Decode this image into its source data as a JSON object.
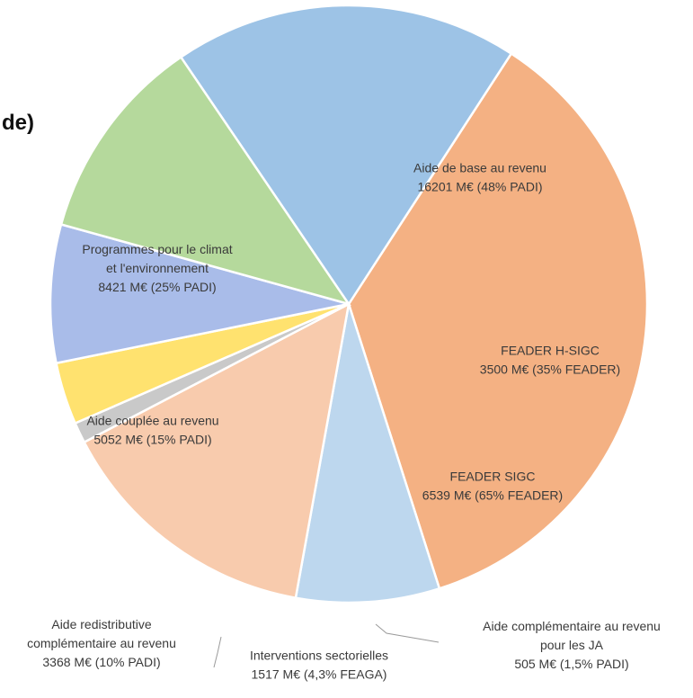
{
  "title_fragment": "de)",
  "chart_data": {
    "type": "pie",
    "unit": "M€",
    "slices": [
      {
        "label": [
          "Aide de base au revenu",
          "16201 M€ (48% PADI)"
        ],
        "value": 16201,
        "color": "#F4B183"
      },
      {
        "label": [
          "FEADER H-SIGC",
          "3500 M€ (35% FEADER)"
        ],
        "value": 3500,
        "color": "#BDD7EE"
      },
      {
        "label": [
          "FEADER SIGC",
          "6539 M€ (65% FEADER)"
        ],
        "value": 6539,
        "color": "#F8CBAD"
      },
      {
        "label": [
          "Aide complémentaire au revenu",
          "pour les JA",
          "505 M€ (1,5% PADI)"
        ],
        "value": 505,
        "color": "#C9C9C9"
      },
      {
        "label": [
          "Interventions sectorielles",
          "1517 M€ (4,3% FEAGA)"
        ],
        "value": 1517,
        "color": "#FFE26F"
      },
      {
        "label": [
          "Aide redistributive",
          "complémentaire au revenu",
          "3368 M€ (10% PADI)"
        ],
        "value": 3368,
        "color": "#A9BCE9"
      },
      {
        "label": [
          "Aide couplée au revenu",
          "5052 M€ (15% PADI)"
        ],
        "value": 5052,
        "color": "#B5D99C"
      },
      {
        "label": [
          "Programmes pour le climat",
          "et l'environnement",
          "8421 M€ (25% PADI)"
        ],
        "value": 8421,
        "color": "#9DC3E6"
      }
    ],
    "start_angle_deg": -57,
    "direction": "clockwise"
  }
}
